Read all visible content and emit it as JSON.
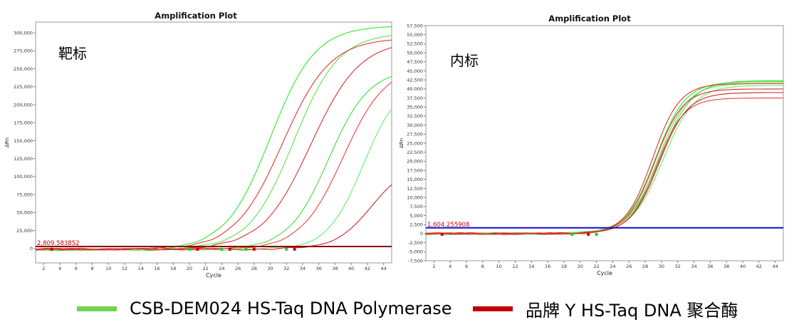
{
  "chart_data": [
    {
      "type": "line",
      "title": "Amplification Plot",
      "xlabel": "Cycle",
      "ylabel": "ΔRn",
      "annotation": "靶标",
      "threshold_label": "2,809.583852",
      "threshold_value": 2809.583852,
      "xlim": [
        1,
        45
      ],
      "ylim": [
        -20000,
        315000
      ],
      "x_ticks": [
        2,
        4,
        6,
        8,
        10,
        12,
        14,
        16,
        18,
        20,
        22,
        24,
        26,
        28,
        30,
        32,
        34,
        36,
        38,
        40,
        42,
        44
      ],
      "y_ticks": [
        0,
        25000,
        50000,
        75000,
        100000,
        125000,
        150000,
        175000,
        200000,
        225000,
        250000,
        275000,
        300000
      ],
      "y_tick_labels": [
        "0",
        "25,000",
        "50,000",
        "75,000",
        "100,000",
        "125,000",
        "150,000",
        "175,000",
        "200,000",
        "225,000",
        "250,000",
        "275,000",
        "300,000"
      ],
      "grid": false,
      "series": [
        {
          "group": "CSB",
          "curve": {
            "Ct": 30.0,
            "k": 0.36,
            "top": 310000,
            "bl": -1500
          }
        },
        {
          "group": "CSB",
          "curve": {
            "Ct": 32.9,
            "k": 0.36,
            "top": 300000,
            "bl": -1500
          }
        },
        {
          "group": "CSB",
          "curve": {
            "Ct": 37.2,
            "k": 0.4,
            "top": 250000,
            "bl": -1500
          }
        },
        {
          "group": "CSB",
          "curve": {
            "Ct": 41.5,
            "k": 0.45,
            "top": 235000,
            "bl": -1500
          }
        },
        {
          "group": "Y",
          "curve": {
            "Ct": 31.5,
            "k": 0.34,
            "top": 293000,
            "bl": -1000
          }
        },
        {
          "group": "Y",
          "curve": {
            "Ct": 35.0,
            "k": 0.33,
            "top": 290000,
            "bl": -1000
          }
        },
        {
          "group": "Y",
          "curve": {
            "Ct": 39.0,
            "k": 0.38,
            "top": 255000,
            "bl": -1000
          }
        },
        {
          "group": "Y",
          "curve": {
            "Ct": 42.5,
            "k": 0.45,
            "top": 118000,
            "bl": -1000
          }
        }
      ]
    },
    {
      "type": "line",
      "title": "Amplification Plot",
      "xlabel": "Cycle",
      "ylabel": "ΔRn",
      "annotation": "内标",
      "threshold_label": "1,604.255908",
      "threshold_value": 1604.255908,
      "xlim": [
        1,
        45
      ],
      "ylim": [
        -7500,
        57500
      ],
      "x_ticks": [
        2,
        4,
        6,
        8,
        10,
        12,
        14,
        16,
        18,
        20,
        22,
        24,
        26,
        28,
        30,
        32,
        34,
        36,
        38,
        40,
        42,
        44
      ],
      "y_ticks": [
        -7500,
        -5000,
        -2500,
        0,
        2500,
        5000,
        7500,
        10000,
        12500,
        15000,
        17500,
        20000,
        22500,
        25000,
        27500,
        30000,
        32500,
        35000,
        37500,
        40000,
        42500,
        45000,
        47500,
        50000,
        52500,
        55000,
        57500
      ],
      "y_tick_labels": [
        "-7,500",
        "-5,000",
        "-2,500",
        "0",
        "2,500",
        "5,000",
        "7,500",
        "10,000",
        "12,500",
        "15,000",
        "17,500",
        "20,000",
        "22,500",
        "25,000",
        "27,500",
        "30,000",
        "32,500",
        "35,000",
        "37,500",
        "40,000",
        "42,500",
        "45,000",
        "47,500",
        "50,000",
        "52,500",
        "55,000",
        "57,500"
      ],
      "grid": false,
      "series": [
        {
          "group": "CSB",
          "curve": {
            "Ct": 29.3,
            "k": 0.55,
            "top": 42000,
            "bl": 0
          }
        },
        {
          "group": "CSB",
          "curve": {
            "Ct": 29.6,
            "k": 0.55,
            "top": 41500,
            "bl": 0
          }
        },
        {
          "group": "CSB",
          "curve": {
            "Ct": 29.9,
            "k": 0.52,
            "top": 42300,
            "bl": 0
          }
        },
        {
          "group": "CSB",
          "curve": {
            "Ct": 30.2,
            "k": 0.52,
            "top": 41000,
            "bl": 0
          }
        },
        {
          "group": "Y",
          "curve": {
            "Ct": 28.9,
            "k": 0.6,
            "top": 41500,
            "bl": 0
          }
        },
        {
          "group": "Y",
          "curve": {
            "Ct": 29.2,
            "k": 0.58,
            "top": 40000,
            "bl": 0
          }
        },
        {
          "group": "Y",
          "curve": {
            "Ct": 29.4,
            "k": 0.6,
            "top": 37500,
            "bl": 0
          }
        },
        {
          "group": "Y",
          "curve": {
            "Ct": 29.7,
            "k": 0.57,
            "top": 39000,
            "bl": 0
          }
        }
      ]
    }
  ],
  "legend": [
    {
      "label": "CSB-DEM024 HS-Taq DNA Polymerase",
      "color": "#72d44a"
    },
    {
      "label": "品牌 Y HS-Taq DNA 聚合酶",
      "color": "#c00000"
    }
  ],
  "colors": {
    "csb_lines": [
      "#2ee82e",
      "#5ae64a",
      "#3fdc3f",
      "#66f066"
    ],
    "y_lines": [
      "#e63232",
      "#d92e2e",
      "#f04040",
      "#c82828"
    ],
    "threshold_left": "#8b0000",
    "threshold_right": "#1010c8",
    "threshold_text": "#cc0000"
  }
}
